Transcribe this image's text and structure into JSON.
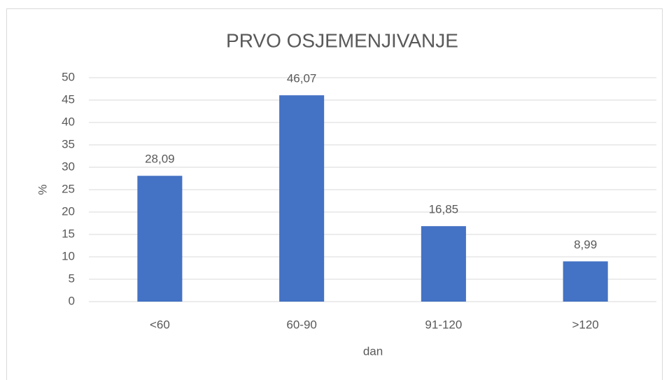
{
  "chart_data": {
    "type": "bar",
    "title": "PRVO OSJEMENJIVANJE",
    "x_label": "dan",
    "y_label": "%",
    "categories": [
      "<60",
      "60-90",
      "91-120",
      ">120"
    ],
    "values": [
      28.09,
      46.07,
      16.85,
      8.99
    ],
    "value_labels": [
      "28,09",
      "46,07",
      "16,85",
      "8,99"
    ],
    "color": "#4472c4",
    "ylim": [
      0,
      50
    ],
    "yticks": [
      0,
      5,
      10,
      15,
      20,
      25,
      30,
      35,
      40,
      45,
      50
    ],
    "grid": true
  }
}
